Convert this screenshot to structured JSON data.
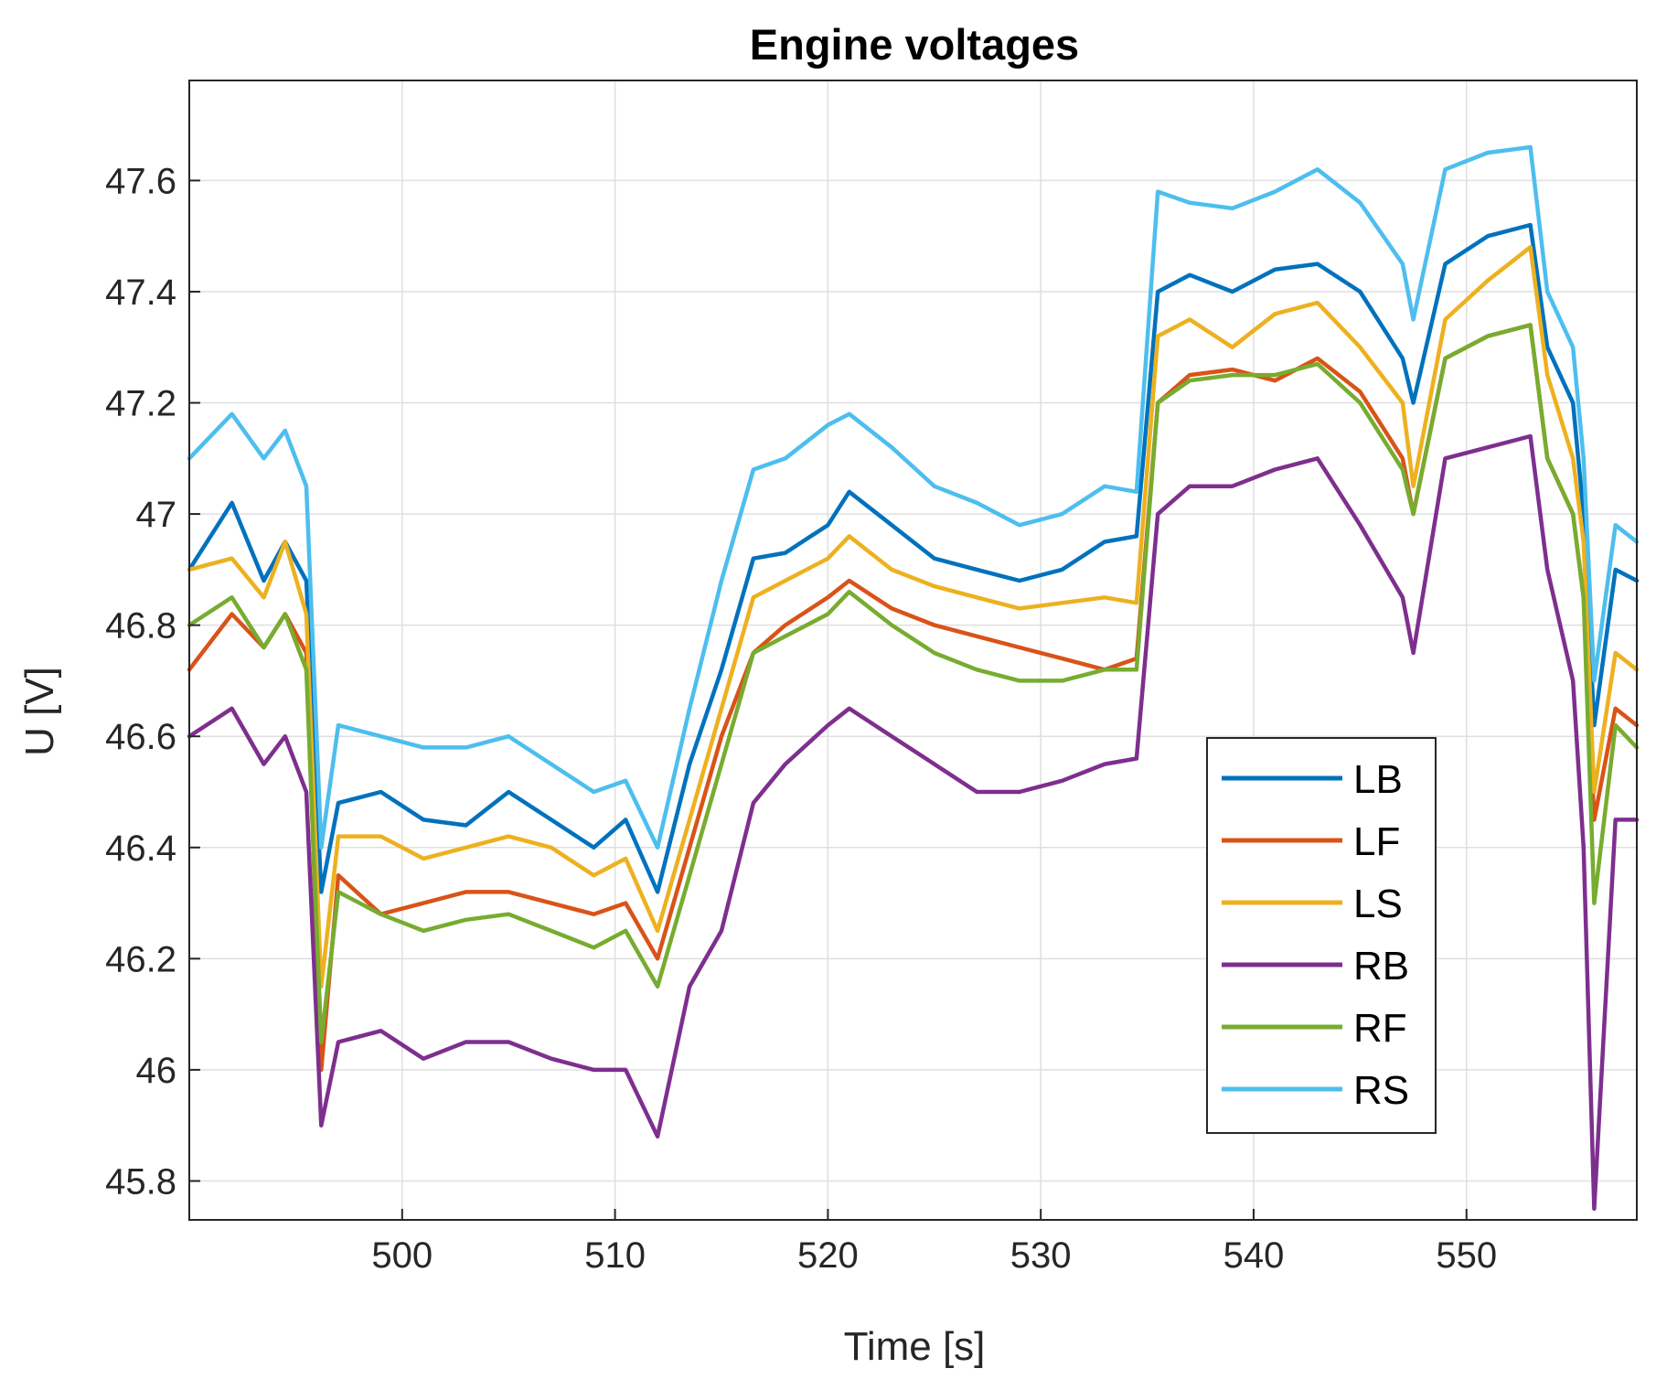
{
  "chart_data": {
    "type": "line",
    "title": "Engine voltages",
    "xlabel": "Time [s]",
    "ylabel": "U [V]",
    "xlim": [
      490,
      558
    ],
    "ylim": [
      45.73,
      47.78
    ],
    "xticks": [
      500,
      510,
      520,
      530,
      540,
      550
    ],
    "yticks": [
      45.8,
      46,
      46.2,
      46.4,
      46.6,
      46.8,
      47,
      47.2,
      47.4,
      47.6
    ],
    "xtick_labels": [
      "500",
      "510",
      "520",
      "530",
      "540",
      "550"
    ],
    "ytick_labels": [
      "45.8",
      "46",
      "46.2",
      "46.4",
      "46.6",
      "46.8",
      "47",
      "47.2",
      "47.4",
      "47.6"
    ],
    "grid": true,
    "legend_position": "lower-right",
    "x": [
      490,
      492,
      493.5,
      494.5,
      495.5,
      496.2,
      497,
      499,
      501,
      503,
      505,
      507,
      509,
      510.5,
      512,
      513.5,
      515,
      516.5,
      518,
      520,
      521,
      523,
      525,
      527,
      529,
      531,
      533,
      534.5,
      535.5,
      537,
      539,
      541,
      543,
      545,
      547,
      547.5,
      549,
      551,
      553,
      553.8,
      555,
      555.5,
      556,
      557,
      558
    ],
    "series": [
      {
        "name": "LB",
        "color": "#0072BD",
        "values": [
          46.9,
          47.02,
          46.88,
          46.95,
          46.88,
          46.32,
          46.48,
          46.5,
          46.45,
          46.44,
          46.5,
          46.45,
          46.4,
          46.45,
          46.32,
          46.55,
          46.72,
          46.92,
          46.93,
          46.98,
          47.04,
          46.98,
          46.92,
          46.9,
          46.88,
          46.9,
          46.95,
          46.96,
          47.4,
          47.43,
          47.4,
          47.44,
          47.45,
          47.4,
          47.28,
          47.2,
          47.45,
          47.5,
          47.52,
          47.3,
          47.2,
          47.0,
          46.62,
          46.9,
          46.88
        ]
      },
      {
        "name": "LF",
        "color": "#D95319",
        "values": [
          46.72,
          46.82,
          46.76,
          46.82,
          46.75,
          46.0,
          46.35,
          46.28,
          46.3,
          46.32,
          46.32,
          46.3,
          46.28,
          46.3,
          46.2,
          46.4,
          46.6,
          46.75,
          46.8,
          46.85,
          46.88,
          46.83,
          46.8,
          46.78,
          46.76,
          46.74,
          46.72,
          46.74,
          47.2,
          47.25,
          47.26,
          47.24,
          47.28,
          47.22,
          47.1,
          47.0,
          47.28,
          47.32,
          47.34,
          47.1,
          47.0,
          46.85,
          46.45,
          46.65,
          46.62
        ]
      },
      {
        "name": "LS",
        "color": "#EDB120",
        "values": [
          46.9,
          46.92,
          46.85,
          46.95,
          46.82,
          46.15,
          46.42,
          46.42,
          46.38,
          46.4,
          46.42,
          46.4,
          46.35,
          46.38,
          46.25,
          46.45,
          46.65,
          46.85,
          46.88,
          46.92,
          46.96,
          46.9,
          46.87,
          46.85,
          46.83,
          46.84,
          46.85,
          46.84,
          47.32,
          47.35,
          47.3,
          47.36,
          47.38,
          47.3,
          47.2,
          47.05,
          47.35,
          47.42,
          47.48,
          47.25,
          47.1,
          46.95,
          46.5,
          46.75,
          46.72
        ]
      },
      {
        "name": "RB",
        "color": "#7E2F8E",
        "values": [
          46.6,
          46.65,
          46.55,
          46.6,
          46.5,
          45.9,
          46.05,
          46.07,
          46.02,
          46.05,
          46.05,
          46.02,
          46.0,
          46.0,
          45.88,
          46.15,
          46.25,
          46.48,
          46.55,
          46.62,
          46.65,
          46.6,
          46.55,
          46.5,
          46.5,
          46.52,
          46.55,
          46.56,
          47.0,
          47.05,
          47.05,
          47.08,
          47.1,
          46.98,
          46.85,
          46.75,
          47.1,
          47.12,
          47.14,
          46.9,
          46.7,
          46.4,
          45.75,
          46.45,
          46.45
        ]
      },
      {
        "name": "RF",
        "color": "#77AC30",
        "values": [
          46.8,
          46.85,
          46.76,
          46.82,
          46.72,
          46.05,
          46.32,
          46.28,
          46.25,
          46.27,
          46.28,
          46.25,
          46.22,
          46.25,
          46.15,
          46.35,
          46.55,
          46.75,
          46.78,
          46.82,
          46.86,
          46.8,
          46.75,
          46.72,
          46.7,
          46.7,
          46.72,
          46.72,
          47.2,
          47.24,
          47.25,
          47.25,
          47.27,
          47.2,
          47.08,
          47.0,
          47.28,
          47.32,
          47.34,
          47.1,
          47.0,
          46.85,
          46.3,
          46.62,
          46.58
        ]
      },
      {
        "name": "RS",
        "color": "#4DBEEE",
        "values": [
          47.1,
          47.18,
          47.1,
          47.15,
          47.05,
          46.4,
          46.62,
          46.6,
          46.58,
          46.58,
          46.6,
          46.55,
          46.5,
          46.52,
          46.4,
          46.65,
          46.88,
          47.08,
          47.1,
          47.16,
          47.18,
          47.12,
          47.05,
          47.02,
          46.98,
          47.0,
          47.05,
          47.04,
          47.58,
          47.56,
          47.55,
          47.58,
          47.62,
          47.56,
          47.45,
          47.35,
          47.62,
          47.65,
          47.66,
          47.4,
          47.3,
          47.1,
          46.7,
          46.98,
          46.95
        ]
      }
    ]
  }
}
